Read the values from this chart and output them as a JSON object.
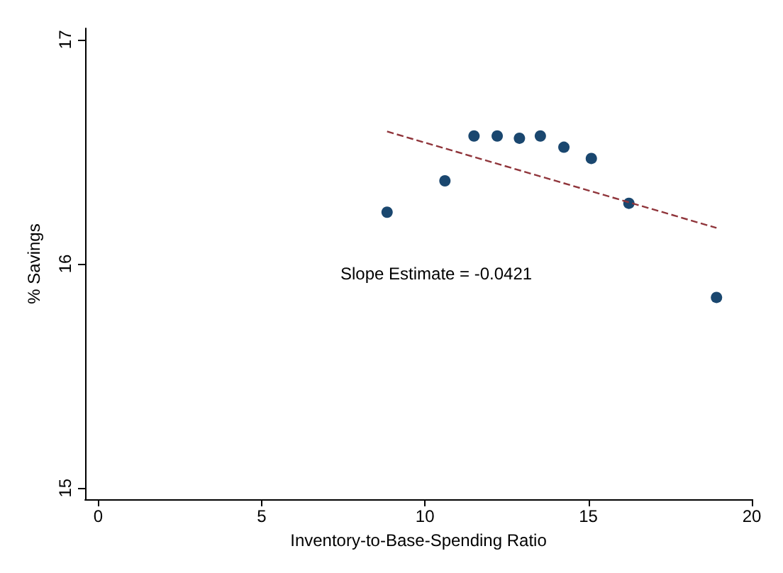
{
  "chart_data": {
    "type": "scatter",
    "xlabel": "Inventory-to-Base-Spending Ratio",
    "ylabel": "% Savings",
    "xlim": [
      -0.4,
      20
    ],
    "ylim": [
      14.95,
      17.05
    ],
    "xticks": [
      0,
      5,
      10,
      15,
      20
    ],
    "yticks": [
      15,
      16,
      17
    ],
    "grid": false,
    "series": [
      {
        "marker": "circle",
        "color": "#1a476f",
        "x": [
          8.84,
          10.61,
          11.5,
          12.21,
          12.89,
          13.53,
          14.25,
          15.09,
          16.24,
          18.92
        ],
        "values": [
          16.23,
          16.37,
          16.57,
          16.57,
          16.56,
          16.57,
          16.52,
          16.47,
          16.27,
          15.85
        ]
      },
      {
        "type": "line",
        "color": "#90353b",
        "line_style": "dashed",
        "x": [
          8.84,
          18.92
        ],
        "values": [
          16.59,
          16.16
        ]
      }
    ],
    "annotations": [
      "Slope Estimate = -0.0421"
    ]
  }
}
